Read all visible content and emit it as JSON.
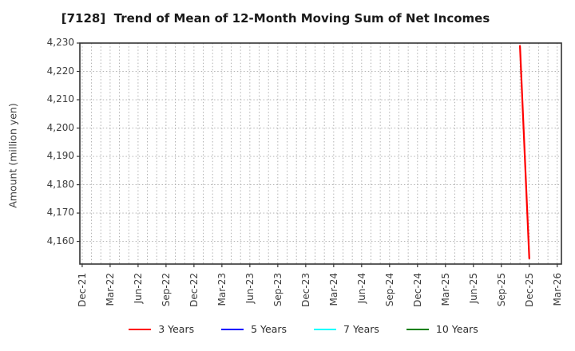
{
  "chart_data": {
    "type": "line",
    "title": "[7128]  Trend of Mean of 12-Month Moving Sum of Net Incomes",
    "ylabel": "Amount (million yen)",
    "xlabel": "",
    "x_tick_labels": [
      "Dec-21",
      "Mar-22",
      "Jun-22",
      "Sep-22",
      "Dec-22",
      "Mar-23",
      "Jun-23",
      "Sep-23",
      "Dec-23",
      "Mar-24",
      "Jun-24",
      "Sep-24",
      "Dec-24",
      "Mar-25",
      "Jun-25",
      "Sep-25",
      "Dec-25",
      "Mar-26"
    ],
    "x_tick_month_interval": 3,
    "xlim_months": [
      -0.25,
      51.45
    ],
    "ylim": [
      4152,
      4230
    ],
    "yticks": [
      4160,
      4170,
      4180,
      4190,
      4200,
      4210,
      4220,
      4230
    ],
    "ytick_labels": [
      "4,160",
      "4,170",
      "4,180",
      "4,190",
      "4,200",
      "4,210",
      "4,220",
      "4,230"
    ],
    "grid": "dotted",
    "grid_minor_monthly": true,
    "legend_position": "bottom-center",
    "series": [
      {
        "name": "3 Years",
        "color": "#ff0000",
        "points": [
          {
            "label": "Nov-25",
            "month": 47,
            "value": 4229
          },
          {
            "label": "Dec-25",
            "month": 48,
            "value": 4154
          }
        ]
      },
      {
        "name": "5 Years",
        "color": "#0000ff",
        "points": []
      },
      {
        "name": "7 Years",
        "color": "#00ffff",
        "points": []
      },
      {
        "name": "10 Years",
        "color": "#008000",
        "points": []
      }
    ],
    "colors": {
      "grid": "#a9a9a9",
      "frame": "#333333",
      "tick_text": "#3d3d3d",
      "title_text": "#1a1a1a",
      "background": "#ffffff"
    }
  }
}
